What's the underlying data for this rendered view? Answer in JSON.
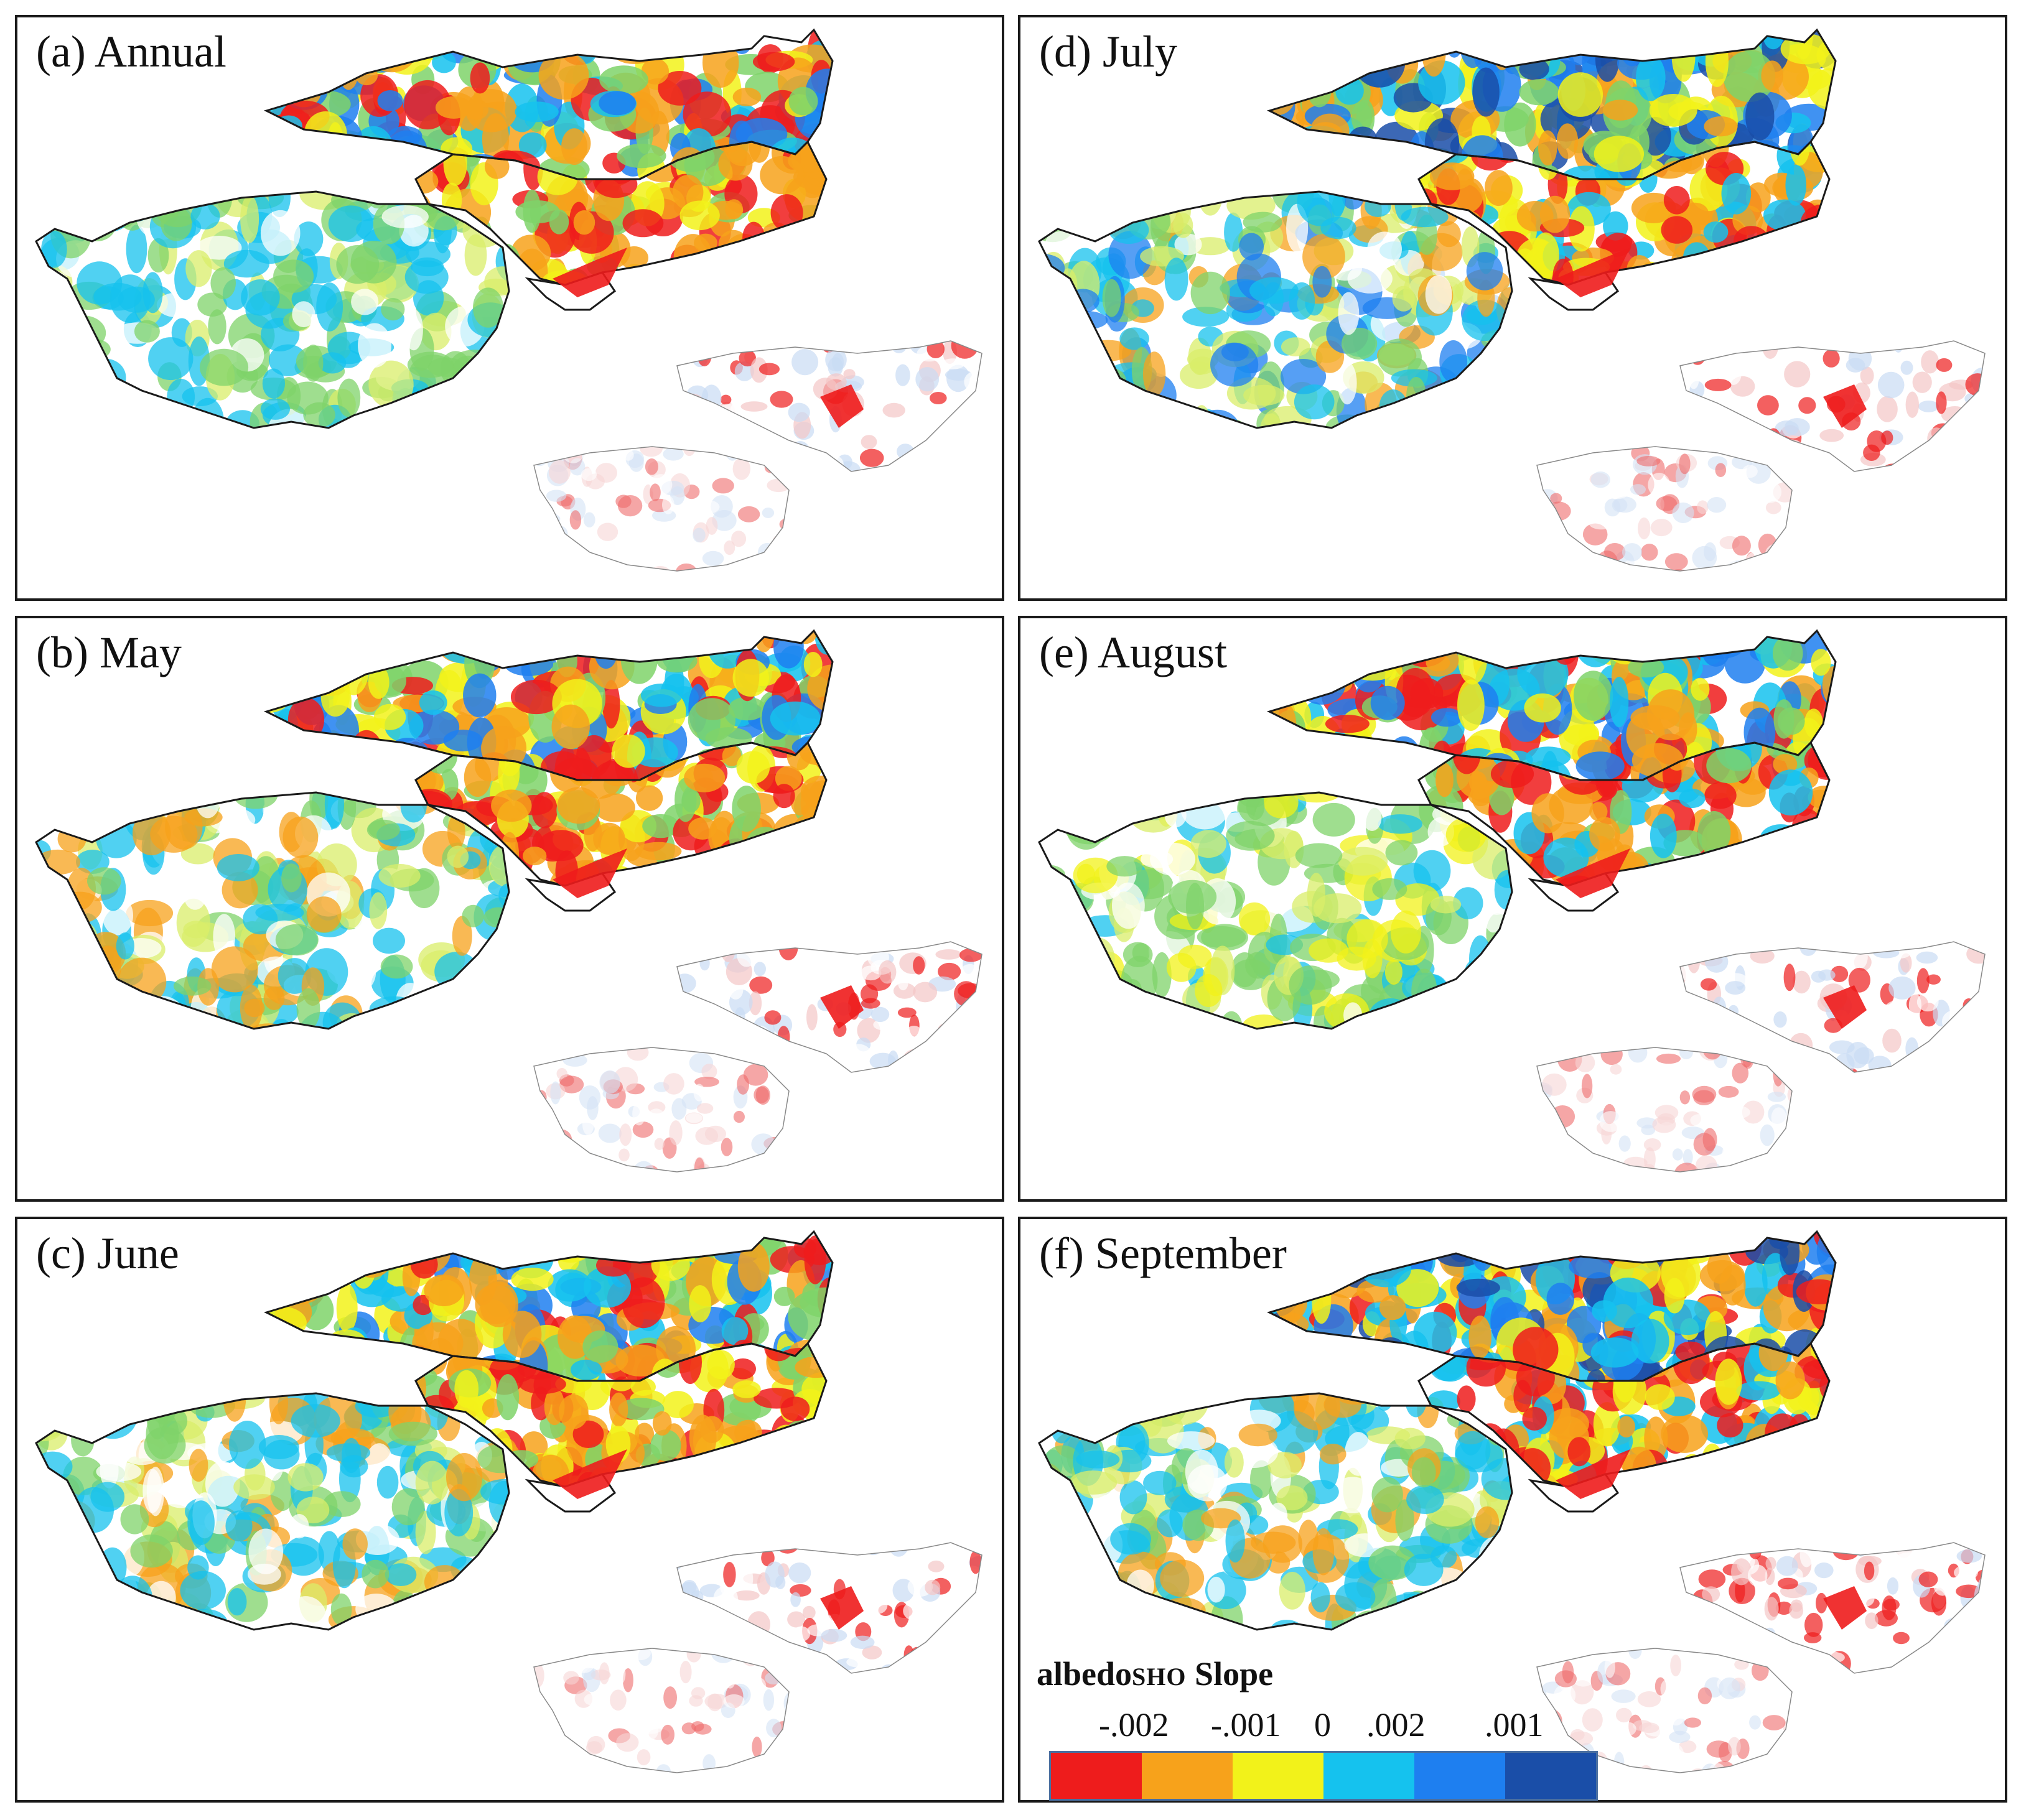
{
  "panels": [
    {
      "id": "a",
      "title": "(a) Annual"
    },
    {
      "id": "b",
      "title": "(b) May"
    },
    {
      "id": "c",
      "title": "(c) June"
    },
    {
      "id": "d",
      "title": "(d) July"
    },
    {
      "id": "e",
      "title": "(e) August"
    },
    {
      "id": "f",
      "title": "(f) September"
    }
  ],
  "legend": {
    "title_main": "albedo",
    "title_sub": "SHO",
    "title_tail": " Slope",
    "ticks": [
      "-.002",
      "-.001",
      "0",
      ".002",
      ".001"
    ],
    "colors": [
      "#ee1c1c",
      "#f7a21b",
      "#f2f21a",
      "#15c2ee",
      "#1e7ff0",
      "#1a4ea8"
    ]
  }
}
